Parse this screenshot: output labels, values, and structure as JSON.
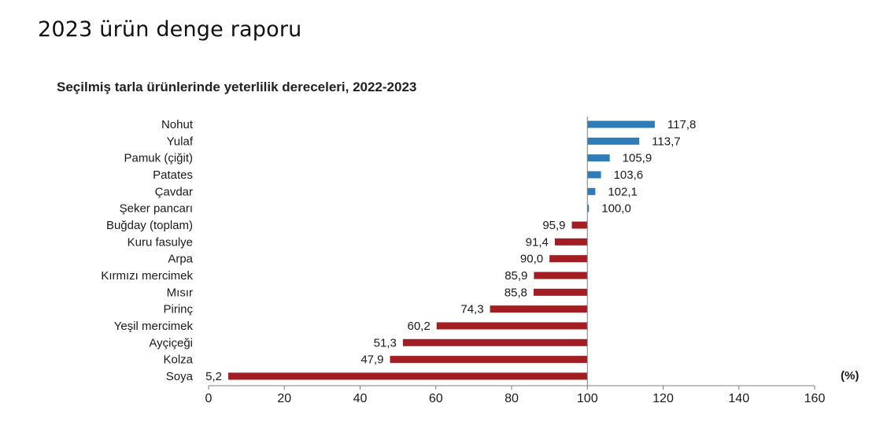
{
  "page": {
    "heading": "2023 ürün denge raporu"
  },
  "chart_data": {
    "type": "bar",
    "orientation": "horizontal",
    "title": "Seçilmiş tarla ürünlerinde yeterlilik dereceleri, 2022-2023",
    "xlabel": "",
    "ylabel": "",
    "unit_label": "(%)",
    "baseline": 100,
    "xlim": [
      0,
      160
    ],
    "xticks": [
      0,
      20,
      40,
      60,
      80,
      100,
      120,
      140,
      160
    ],
    "categories": [
      "Nohut",
      "Yulaf",
      "Pamuk (çiğit)",
      "Patates",
      "Çavdar",
      "Şeker pancarı",
      "Buğday (toplam)",
      "Kuru fasulye",
      "Arpa",
      "Kırmızı mercimek",
      "Mısır",
      "Pirinç",
      "Yeşil mercimek",
      "Ayçiçeği",
      "Kolza",
      "Soya"
    ],
    "values": [
      117.8,
      113.7,
      105.9,
      103.6,
      102.1,
      100.0,
      95.9,
      91.4,
      90.0,
      85.9,
      85.8,
      74.3,
      60.2,
      51.3,
      47.9,
      5.2
    ],
    "value_labels": [
      "117,8",
      "113,7",
      "105,9",
      "103,6",
      "102,1",
      "100,0",
      "95,9",
      "91,4",
      "90,0",
      "85,9",
      "85,8",
      "74,3",
      "60,2",
      "51,3",
      "47,9",
      "5,2"
    ],
    "grid": false,
    "legend": "none",
    "colors": {
      "above_baseline": "#2e7db8",
      "below_baseline": "#a31e22",
      "axis": "#7f7f7f"
    }
  }
}
